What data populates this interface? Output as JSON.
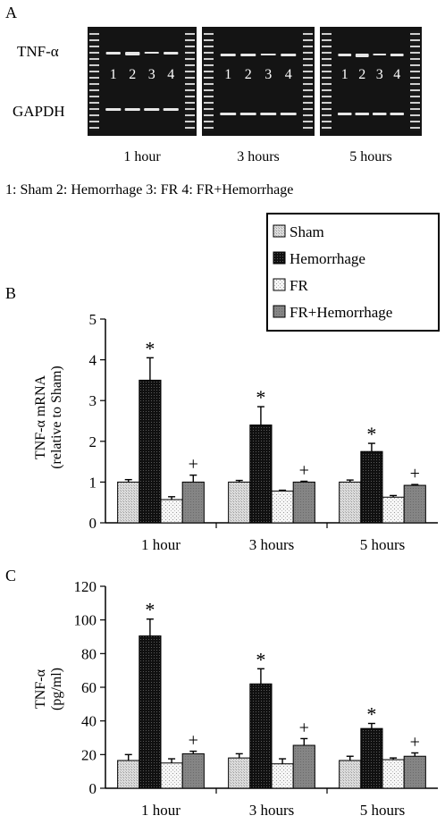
{
  "colors": {
    "sham": "#d8d8d8",
    "hemorrhage": "#151515",
    "fr": "#f4f4f4",
    "fr_hemorrhage": "#8a8a8a",
    "gel_bg": "#141414",
    "band": "#e6e6e6"
  },
  "panel_a": {
    "label": "A",
    "gene_top": "TNF-α",
    "gene_bottom": "GAPDH",
    "lane_numbers": [
      "1",
      "2",
      "3",
      "4"
    ],
    "timepoints": [
      "1 hour",
      "3 hours",
      "5 hours"
    ],
    "key_text": "1: Sham  2: Hemorrhage  3: FR  4: FR+Hemorrhage"
  },
  "legend": {
    "entries": [
      "Sham",
      "Hemorrhage",
      "FR",
      "FR+Hemorrhage"
    ]
  },
  "chart_data": [
    {
      "panel": "B",
      "type": "bar",
      "categories": [
        "1 hour",
        "3 hours",
        "5 hours"
      ],
      "ylabel": "TNF-α mRNA\n(relative to Sham)",
      "ylim": [
        0,
        5
      ],
      "yticks": [
        0,
        1,
        2,
        3,
        4,
        5
      ],
      "series": [
        {
          "name": "Sham",
          "values": [
            1.0,
            1.0,
            1.0
          ],
          "errors": [
            0.06,
            0.04,
            0.05
          ]
        },
        {
          "name": "Hemorrhage",
          "values": [
            3.5,
            2.4,
            1.75
          ],
          "errors": [
            0.55,
            0.45,
            0.2
          ]
        },
        {
          "name": "FR",
          "values": [
            0.57,
            0.78,
            0.63
          ],
          "errors": [
            0.07,
            0.02,
            0.04
          ]
        },
        {
          "name": "FR+Hemorrhage",
          "values": [
            1.0,
            1.0,
            0.92
          ],
          "errors": [
            0.17,
            0.02,
            0.02
          ]
        }
      ],
      "annotations": [
        {
          "series": "Hemorrhage",
          "category": "1 hour",
          "text": "*"
        },
        {
          "series": "Hemorrhage",
          "category": "3 hours",
          "text": "*"
        },
        {
          "series": "Hemorrhage",
          "category": "5 hours",
          "text": "*"
        },
        {
          "series": "FR+Hemorrhage",
          "category": "1 hour",
          "text": "+"
        },
        {
          "series": "FR+Hemorrhage",
          "category": "3 hours",
          "text": "+"
        },
        {
          "series": "FR+Hemorrhage",
          "category": "5 hours",
          "text": "+"
        }
      ]
    },
    {
      "panel": "C",
      "type": "bar",
      "categories": [
        "1 hour",
        "3 hours",
        "5 hours"
      ],
      "ylabel": "TNF-α\n(pg/ml)",
      "ylim": [
        0,
        120
      ],
      "yticks": [
        0,
        20,
        40,
        60,
        80,
        100,
        120
      ],
      "series": [
        {
          "name": "Sham",
          "values": [
            16.5,
            18,
            16.5
          ],
          "errors": [
            3.5,
            2.5,
            2.5
          ]
        },
        {
          "name": "Hemorrhage",
          "values": [
            90.5,
            62,
            35.5
          ],
          "errors": [
            10,
            9,
            3
          ]
        },
        {
          "name": "FR",
          "values": [
            15,
            14.5,
            17
          ],
          "errors": [
            2.5,
            3,
            1
          ]
        },
        {
          "name": "FR+Hemorrhage",
          "values": [
            20.5,
            25.5,
            19
          ],
          "errors": [
            1.5,
            4,
            2
          ]
        }
      ],
      "annotations": [
        {
          "series": "Hemorrhage",
          "category": "1 hour",
          "text": "*"
        },
        {
          "series": "Hemorrhage",
          "category": "3 hours",
          "text": "*"
        },
        {
          "series": "Hemorrhage",
          "category": "5 hours",
          "text": "*"
        },
        {
          "series": "FR+Hemorrhage",
          "category": "1 hour",
          "text": "+"
        },
        {
          "series": "FR+Hemorrhage",
          "category": "3 hours",
          "text": "+"
        },
        {
          "series": "FR+Hemorrhage",
          "category": "5 hours",
          "text": "+"
        }
      ]
    }
  ]
}
